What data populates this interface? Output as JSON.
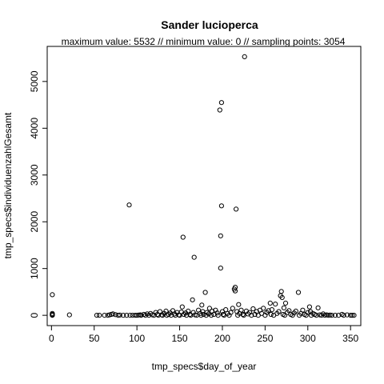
{
  "chart_data": {
    "type": "scatter",
    "title": "Sander lucioperca",
    "subtitle": "maximum value: 5532  //  minimum value: 0  // sampling points: 3054",
    "xlabel": "tmp_specs$day_of_year",
    "ylabel": "tmp_specs$individuenzahlGesamt",
    "xlim": [
      -5,
      362
    ],
    "ylim": [
      -220,
      5750
    ],
    "x_ticks": [
      0,
      50,
      100,
      150,
      200,
      250,
      300,
      350
    ],
    "y_ticks": [
      0,
      1000,
      2000,
      3000,
      4000,
      5000
    ],
    "grid": false,
    "legend": "none",
    "marker": "open-circle",
    "points": [
      [
        1,
        440
      ],
      [
        1,
        40
      ],
      [
        1,
        20
      ],
      [
        1,
        0
      ],
      [
        1,
        5
      ],
      [
        21,
        10
      ],
      [
        53,
        0
      ],
      [
        56,
        0
      ],
      [
        62,
        0
      ],
      [
        66,
        0
      ],
      [
        68,
        10
      ],
      [
        70,
        20
      ],
      [
        72,
        30
      ],
      [
        75,
        15
      ],
      [
        78,
        0
      ],
      [
        80,
        5
      ],
      [
        84,
        0
      ],
      [
        88,
        0
      ],
      [
        91,
        2360
      ],
      [
        92,
        0
      ],
      [
        95,
        0
      ],
      [
        98,
        0
      ],
      [
        100,
        0
      ],
      [
        102,
        5
      ],
      [
        104,
        10
      ],
      [
        105,
        0
      ],
      [
        108,
        20
      ],
      [
        110,
        0
      ],
      [
        112,
        30
      ],
      [
        114,
        0
      ],
      [
        116,
        40
      ],
      [
        118,
        10
      ],
      [
        120,
        0
      ],
      [
        122,
        60
      ],
      [
        124,
        20
      ],
      [
        125,
        0
      ],
      [
        127,
        80
      ],
      [
        129,
        10
      ],
      [
        130,
        0
      ],
      [
        132,
        40
      ],
      [
        134,
        90
      ],
      [
        135,
        0
      ],
      [
        137,
        20
      ],
      [
        139,
        50
      ],
      [
        140,
        0
      ],
      [
        142,
        100
      ],
      [
        144,
        30
      ],
      [
        145,
        0
      ],
      [
        147,
        60
      ],
      [
        149,
        10
      ],
      [
        150,
        0
      ],
      [
        152,
        70
      ],
      [
        153,
        180
      ],
      [
        154,
        1670
      ],
      [
        155,
        20
      ],
      [
        157,
        50
      ],
      [
        158,
        0
      ],
      [
        160,
        90
      ],
      [
        162,
        20
      ],
      [
        163,
        0
      ],
      [
        165,
        330
      ],
      [
        166,
        60
      ],
      [
        167,
        1240
      ],
      [
        168,
        10
      ],
      [
        170,
        0
      ],
      [
        172,
        110
      ],
      [
        174,
        40
      ],
      [
        175,
        0
      ],
      [
        176,
        220
      ],
      [
        177,
        80
      ],
      [
        178,
        20
      ],
      [
        180,
        490
      ],
      [
        181,
        0
      ],
      [
        182,
        60
      ],
      [
        184,
        30
      ],
      [
        185,
        150
      ],
      [
        187,
        0
      ],
      [
        188,
        90
      ],
      [
        190,
        20
      ],
      [
        192,
        110
      ],
      [
        194,
        50
      ],
      [
        195,
        0
      ],
      [
        197,
        4390
      ],
      [
        198,
        1010
      ],
      [
        198,
        1700
      ],
      [
        199,
        2340
      ],
      [
        199,
        4550
      ],
      [
        200,
        80
      ],
      [
        201,
        20
      ],
      [
        202,
        0
      ],
      [
        204,
        120
      ],
      [
        206,
        40
      ],
      [
        208,
        0
      ],
      [
        210,
        60
      ],
      [
        212,
        150
      ],
      [
        214,
        560
      ],
      [
        215,
        600
      ],
      [
        215,
        520
      ],
      [
        216,
        2270
      ],
      [
        217,
        80
      ],
      [
        218,
        0
      ],
      [
        219,
        230
      ],
      [
        220,
        40
      ],
      [
        222,
        110
      ],
      [
        224,
        20
      ],
      [
        225,
        0
      ],
      [
        226,
        5530
      ],
      [
        228,
        90
      ],
      [
        230,
        30
      ],
      [
        232,
        60
      ],
      [
        234,
        0
      ],
      [
        236,
        140
      ],
      [
        238,
        20
      ],
      [
        240,
        80
      ],
      [
        242,
        0
      ],
      [
        244,
        110
      ],
      [
        246,
        40
      ],
      [
        248,
        150
      ],
      [
        250,
        0
      ],
      [
        252,
        60
      ],
      [
        254,
        100
      ],
      [
        256,
        260
      ],
      [
        257,
        20
      ],
      [
        258,
        120
      ],
      [
        260,
        0
      ],
      [
        262,
        240
      ],
      [
        264,
        40
      ],
      [
        266,
        80
      ],
      [
        268,
        420
      ],
      [
        269,
        510
      ],
      [
        270,
        380
      ],
      [
        271,
        20
      ],
      [
        272,
        160
      ],
      [
        273,
        0
      ],
      [
        274,
        260
      ],
      [
        276,
        60
      ],
      [
        278,
        100
      ],
      [
        280,
        20
      ],
      [
        282,
        0
      ],
      [
        284,
        50
      ],
      [
        286,
        90
      ],
      [
        289,
        490
      ],
      [
        290,
        0
      ],
      [
        292,
        40
      ],
      [
        294,
        110
      ],
      [
        296,
        20
      ],
      [
        298,
        0
      ],
      [
        300,
        60
      ],
      [
        302,
        180
      ],
      [
        303,
        80
      ],
      [
        304,
        0
      ],
      [
        306,
        40
      ],
      [
        308,
        20
      ],
      [
        310,
        0
      ],
      [
        312,
        160
      ],
      [
        314,
        10
      ],
      [
        316,
        0
      ],
      [
        318,
        30
      ],
      [
        320,
        0
      ],
      [
        322,
        10
      ],
      [
        324,
        0
      ],
      [
        326,
        5
      ],
      [
        328,
        0
      ],
      [
        332,
        0
      ],
      [
        336,
        0
      ],
      [
        340,
        20
      ],
      [
        342,
        0
      ],
      [
        346,
        10
      ],
      [
        350,
        0
      ],
      [
        352,
        0
      ],
      [
        354,
        0
      ]
    ]
  }
}
